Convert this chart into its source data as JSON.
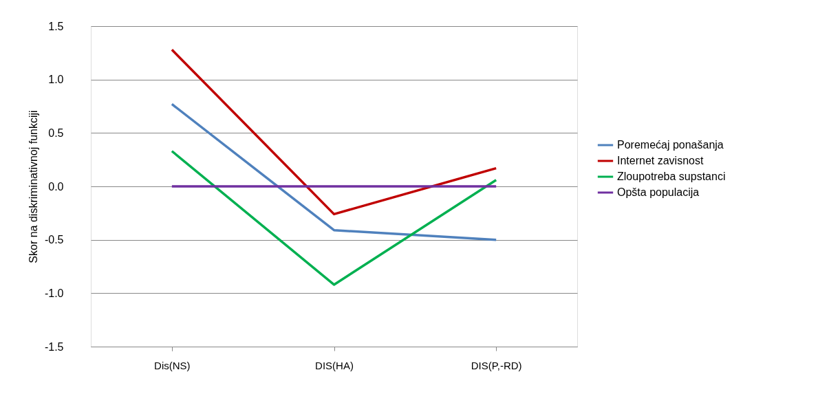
{
  "chart_data": {
    "type": "line",
    "ylabel": "Skor na diskriminativnoj funkciji",
    "categories": [
      "Dis(NS)",
      "DIS(HA)",
      "DIS(P,-RD)"
    ],
    "series": [
      {
        "name": "Poremećaj ponašanja",
        "color": "#4f81bd",
        "values": [
          0.77,
          -0.41,
          -0.5
        ]
      },
      {
        "name": "Internet zavisnost",
        "color": "#c00000",
        "values": [
          1.28,
          -0.26,
          0.17
        ]
      },
      {
        "name": "Zloupotreba supstanci",
        "color": "#00b050",
        "values": [
          0.33,
          -0.92,
          0.06
        ]
      },
      {
        "name": "Opšta populacija",
        "color": "#7030a0",
        "values": [
          0,
          0,
          0
        ]
      }
    ],
    "ylim": [
      -1.5,
      1.5
    ],
    "yticks": [
      {
        "value": -1.5,
        "label": "-1.5"
      },
      {
        "value": -1,
        "label": "-1.0"
      },
      {
        "value": -0.5,
        "label": "-0.5"
      },
      {
        "value": 0,
        "label": "0.0"
      },
      {
        "value": 0.5,
        "label": "0.5"
      },
      {
        "value": 1,
        "label": "1.0"
      },
      {
        "value": 1.5,
        "label": "1.5"
      }
    ],
    "grid": "y",
    "legend": "right",
    "marker": "none",
    "line_style": "solid"
  }
}
